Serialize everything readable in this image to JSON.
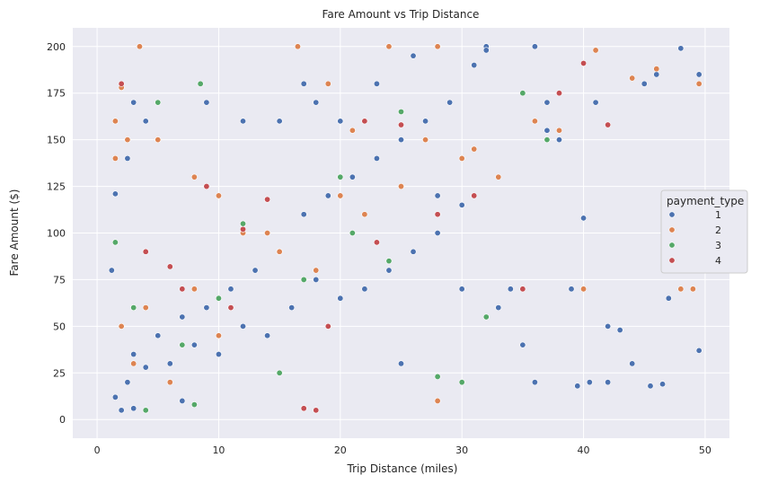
{
  "chart_data": {
    "type": "scatter",
    "title": "Fare Amount vs Trip Distance",
    "xlabel": "Trip Distance (miles)",
    "ylabel": "Fare Amount ($)",
    "xlim": [
      -2,
      52
    ],
    "ylim": [
      -10,
      210
    ],
    "xticks": [
      0,
      10,
      20,
      30,
      40,
      50
    ],
    "yticks": [
      0,
      25,
      50,
      75,
      100,
      125,
      150,
      175,
      200
    ],
    "grid": true,
    "legend": {
      "title": "payment_type",
      "placement": "right",
      "entries": [
        "1",
        "2",
        "3",
        "4"
      ]
    },
    "colors": {
      "background": "#eaeaf2",
      "grid": "#ffffff",
      "1": "#4c72b0",
      "2": "#dd8452",
      "3": "#55a868",
      "4": "#c44e52"
    },
    "series": [
      {
        "name": "1",
        "points": [
          [
            1.5,
            12
          ],
          [
            2.5,
            20
          ],
          [
            3,
            35
          ],
          [
            4,
            28
          ],
          [
            5,
            45
          ],
          [
            6,
            30
          ],
          [
            7,
            55
          ],
          [
            8,
            40
          ],
          [
            9,
            60
          ],
          [
            10,
            35
          ],
          [
            11,
            70
          ],
          [
            12,
            50
          ],
          [
            13,
            80
          ],
          [
            14,
            45
          ],
          [
            15,
            90
          ],
          [
            16,
            60
          ],
          [
            17,
            110
          ],
          [
            18,
            75
          ],
          [
            19,
            120
          ],
          [
            20,
            65
          ],
          [
            21,
            130
          ],
          [
            22,
            70
          ],
          [
            23,
            140
          ],
          [
            24,
            80
          ],
          [
            25,
            150
          ],
          [
            26,
            90
          ],
          [
            27,
            160
          ],
          [
            28,
            100
          ],
          [
            29,
            170
          ],
          [
            30,
            70
          ],
          [
            31,
            190
          ],
          [
            32,
            200
          ],
          [
            33,
            60
          ],
          [
            34,
            70
          ],
          [
            35,
            40
          ],
          [
            36,
            20
          ],
          [
            37,
            170
          ],
          [
            38,
            150
          ],
          [
            39,
            70
          ],
          [
            40,
            108
          ],
          [
            41,
            170
          ],
          [
            42,
            50
          ],
          [
            43,
            48
          ],
          [
            44,
            30
          ],
          [
            45,
            180
          ],
          [
            46,
            185
          ],
          [
            47,
            65
          ],
          [
            48,
            199
          ],
          [
            49,
            70
          ],
          [
            49.5,
            185
          ],
          [
            49.5,
            37
          ],
          [
            45.5,
            18
          ],
          [
            46.5,
            19
          ],
          [
            40.5,
            20
          ],
          [
            39.5,
            18
          ],
          [
            42,
            20
          ],
          [
            37,
            155
          ],
          [
            30,
            115
          ],
          [
            28,
            120
          ],
          [
            25,
            30
          ],
          [
            5,
            150
          ],
          [
            4,
            160
          ],
          [
            3,
            170
          ],
          [
            2.5,
            140
          ],
          [
            1.5,
            121
          ],
          [
            1.2,
            80
          ],
          [
            2,
            5
          ],
          [
            3,
            6
          ],
          [
            7,
            10
          ],
          [
            9,
            170
          ],
          [
            12,
            160
          ],
          [
            15,
            160
          ],
          [
            17,
            180
          ],
          [
            18,
            170
          ],
          [
            20,
            160
          ],
          [
            23,
            180
          ],
          [
            26,
            195
          ],
          [
            28,
            200
          ],
          [
            32,
            198
          ],
          [
            36,
            200
          ]
        ]
      },
      {
        "name": "2",
        "points": [
          [
            1.5,
            160
          ],
          [
            2,
            178
          ],
          [
            3.5,
            200
          ],
          [
            1.5,
            140
          ],
          [
            2.5,
            150
          ],
          [
            5,
            150
          ],
          [
            8,
            130
          ],
          [
            10,
            120
          ],
          [
            12,
            100
          ],
          [
            15,
            90
          ],
          [
            16.5,
            200
          ],
          [
            19,
            180
          ],
          [
            21,
            155
          ],
          [
            24,
            200
          ],
          [
            28,
            200
          ],
          [
            27,
            150
          ],
          [
            30,
            140
          ],
          [
            33,
            130
          ],
          [
            36,
            160
          ],
          [
            40,
            70
          ],
          [
            41,
            198
          ],
          [
            44,
            183
          ],
          [
            46,
            188
          ],
          [
            48,
            70
          ],
          [
            49,
            70
          ],
          [
            49.5,
            180
          ],
          [
            28,
            10
          ],
          [
            22,
            110
          ],
          [
            18,
            80
          ],
          [
            6,
            20
          ],
          [
            3,
            30
          ],
          [
            2,
            50
          ],
          [
            4,
            60
          ],
          [
            8,
            70
          ],
          [
            10,
            45
          ],
          [
            14,
            100
          ],
          [
            20,
            120
          ],
          [
            25,
            125
          ],
          [
            31,
            145
          ],
          [
            38,
            155
          ]
        ]
      },
      {
        "name": "3",
        "points": [
          [
            5,
            170
          ],
          [
            8.5,
            180
          ],
          [
            1.5,
            95
          ],
          [
            3,
            60
          ],
          [
            7,
            40
          ],
          [
            12,
            105
          ],
          [
            17,
            75
          ],
          [
            21,
            100
          ],
          [
            25,
            165
          ],
          [
            35,
            175
          ],
          [
            37,
            150
          ],
          [
            4,
            5
          ],
          [
            8,
            8
          ],
          [
            15,
            25
          ],
          [
            28,
            23
          ],
          [
            30,
            20
          ],
          [
            32,
            55
          ],
          [
            20,
            130
          ],
          [
            10,
            65
          ],
          [
            24,
            85
          ]
        ]
      },
      {
        "name": "4",
        "points": [
          [
            2,
            180
          ],
          [
            4,
            90
          ],
          [
            6,
            82
          ],
          [
            9,
            125
          ],
          [
            12,
            102
          ],
          [
            14,
            118
          ],
          [
            17,
            6
          ],
          [
            18,
            5
          ],
          [
            22,
            160
          ],
          [
            25,
            158
          ],
          [
            28,
            110
          ],
          [
            31,
            120
          ],
          [
            38,
            175
          ],
          [
            40,
            191
          ],
          [
            42,
            158
          ],
          [
            11,
            60
          ],
          [
            19,
            50
          ],
          [
            23,
            95
          ],
          [
            7,
            70
          ],
          [
            35,
            70
          ]
        ]
      }
    ]
  }
}
